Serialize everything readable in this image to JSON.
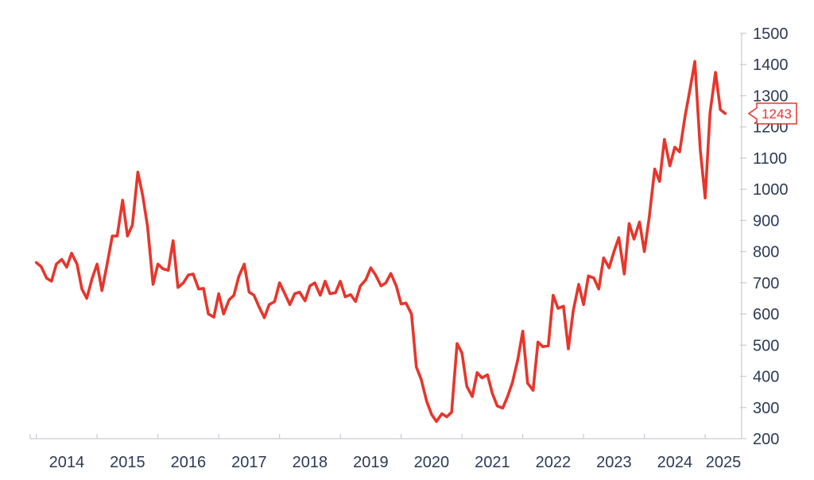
{
  "chart_data": {
    "type": "line",
    "title": "",
    "xlabel": "",
    "ylabel": "",
    "x_tick_labels": [
      "2014",
      "2015",
      "2016",
      "2017",
      "2018",
      "2019",
      "2020",
      "2021",
      "2022",
      "2023",
      "2024",
      "2025"
    ],
    "y_ticks": [
      200,
      300,
      400,
      500,
      600,
      700,
      800,
      900,
      1000,
      1100,
      1200,
      1300,
      1400,
      1500
    ],
    "ylim": [
      200,
      1500
    ],
    "xlim": [
      2013.9,
      2025.6
    ],
    "y_axis_position": "right",
    "grid": false,
    "legend": "none",
    "colors": {
      "series": "#e8352b",
      "axis": "#c9ccd2",
      "text": "#2b3a57"
    },
    "last_value_label": "1243",
    "series": [
      {
        "points": [
          [
            2014.0,
            765
          ],
          [
            2014.08,
            752
          ],
          [
            2014.17,
            715
          ],
          [
            2014.25,
            705
          ],
          [
            2014.33,
            760
          ],
          [
            2014.42,
            775
          ],
          [
            2014.5,
            750
          ],
          [
            2014.58,
            795
          ],
          [
            2014.67,
            760
          ],
          [
            2014.75,
            680
          ],
          [
            2014.83,
            650
          ],
          [
            2014.92,
            715
          ],
          [
            2015.0,
            760
          ],
          [
            2015.08,
            675
          ],
          [
            2015.17,
            765
          ],
          [
            2015.25,
            850
          ],
          [
            2015.33,
            850
          ],
          [
            2015.42,
            965
          ],
          [
            2015.5,
            850
          ],
          [
            2015.58,
            885
          ],
          [
            2015.67,
            1055
          ],
          [
            2015.75,
            980
          ],
          [
            2015.83,
            880
          ],
          [
            2015.92,
            695
          ],
          [
            2016.0,
            760
          ],
          [
            2016.08,
            745
          ],
          [
            2016.17,
            740
          ],
          [
            2016.25,
            835
          ],
          [
            2016.33,
            685
          ],
          [
            2016.42,
            700
          ],
          [
            2016.5,
            725
          ],
          [
            2016.58,
            728
          ],
          [
            2016.67,
            680
          ],
          [
            2016.75,
            682
          ],
          [
            2016.83,
            600
          ],
          [
            2016.92,
            590
          ],
          [
            2017.0,
            665
          ],
          [
            2017.08,
            600
          ],
          [
            2017.17,
            645
          ],
          [
            2017.25,
            660
          ],
          [
            2017.33,
            720
          ],
          [
            2017.42,
            760
          ],
          [
            2017.5,
            670
          ],
          [
            2017.58,
            660
          ],
          [
            2017.67,
            620
          ],
          [
            2017.75,
            588
          ],
          [
            2017.83,
            630
          ],
          [
            2017.92,
            640
          ],
          [
            2018.0,
            700
          ],
          [
            2018.08,
            668
          ],
          [
            2018.17,
            630
          ],
          [
            2018.25,
            665
          ],
          [
            2018.33,
            670
          ],
          [
            2018.42,
            642
          ],
          [
            2018.5,
            690
          ],
          [
            2018.58,
            700
          ],
          [
            2018.67,
            660
          ],
          [
            2018.75,
            705
          ],
          [
            2018.83,
            665
          ],
          [
            2018.92,
            668
          ],
          [
            2019.0,
            705
          ],
          [
            2019.08,
            655
          ],
          [
            2019.17,
            662
          ],
          [
            2019.25,
            640
          ],
          [
            2019.33,
            690
          ],
          [
            2019.42,
            710
          ],
          [
            2019.5,
            748
          ],
          [
            2019.58,
            725
          ],
          [
            2019.67,
            690
          ],
          [
            2019.75,
            700
          ],
          [
            2019.83,
            730
          ],
          [
            2019.92,
            690
          ],
          [
            2020.0,
            632
          ],
          [
            2020.08,
            635
          ],
          [
            2020.17,
            600
          ],
          [
            2020.25,
            430
          ],
          [
            2020.33,
            390
          ],
          [
            2020.42,
            320
          ],
          [
            2020.5,
            278
          ],
          [
            2020.58,
            255
          ],
          [
            2020.67,
            280
          ],
          [
            2020.75,
            270
          ],
          [
            2020.83,
            285
          ],
          [
            2020.92,
            505
          ],
          [
            2021.0,
            475
          ],
          [
            2021.08,
            368
          ],
          [
            2021.17,
            335
          ],
          [
            2021.25,
            412
          ],
          [
            2021.33,
            395
          ],
          [
            2021.42,
            405
          ],
          [
            2021.5,
            345
          ],
          [
            2021.58,
            305
          ],
          [
            2021.67,
            298
          ],
          [
            2021.75,
            335
          ],
          [
            2021.83,
            380
          ],
          [
            2021.92,
            455
          ],
          [
            2022.0,
            545
          ],
          [
            2022.08,
            378
          ],
          [
            2022.17,
            355
          ],
          [
            2022.25,
            510
          ],
          [
            2022.33,
            495
          ],
          [
            2022.42,
            498
          ],
          [
            2022.5,
            660
          ],
          [
            2022.58,
            618
          ],
          [
            2022.67,
            625
          ],
          [
            2022.75,
            488
          ],
          [
            2022.83,
            610
          ],
          [
            2022.92,
            695
          ],
          [
            2023.0,
            630
          ],
          [
            2023.08,
            722
          ],
          [
            2023.17,
            715
          ],
          [
            2023.25,
            680
          ],
          [
            2023.33,
            780
          ],
          [
            2023.42,
            748
          ],
          [
            2023.5,
            800
          ],
          [
            2023.58,
            845
          ],
          [
            2023.67,
            728
          ],
          [
            2023.75,
            890
          ],
          [
            2023.83,
            840
          ],
          [
            2023.92,
            895
          ],
          [
            2024.0,
            800
          ],
          [
            2024.08,
            910
          ],
          [
            2024.17,
            1065
          ],
          [
            2024.25,
            1025
          ],
          [
            2024.33,
            1160
          ],
          [
            2024.42,
            1075
          ],
          [
            2024.5,
            1135
          ],
          [
            2024.58,
            1120
          ],
          [
            2024.67,
            1235
          ],
          [
            2024.75,
            1320
          ],
          [
            2024.83,
            1410
          ],
          [
            2024.92,
            1125
          ],
          [
            2025.0,
            972
          ],
          [
            2025.08,
            1245
          ],
          [
            2025.17,
            1375
          ],
          [
            2025.25,
            1255
          ],
          [
            2025.33,
            1243
          ]
        ]
      }
    ]
  }
}
